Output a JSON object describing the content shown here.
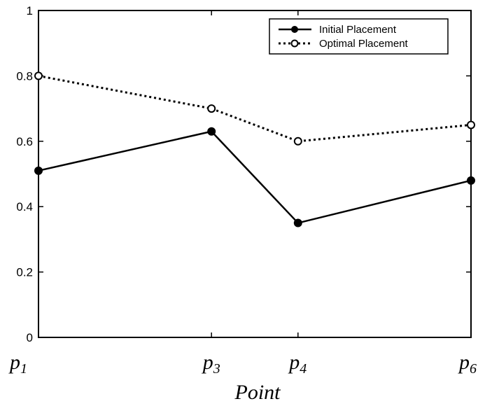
{
  "chart_data": {
    "type": "line",
    "xlabel": "Point",
    "ylabel": "",
    "title": "",
    "categories": [
      {
        "base": "p",
        "sub": "1"
      },
      {
        "base": "p",
        "sub": "3"
      },
      {
        "base": "p",
        "sub": "4"
      },
      {
        "base": "p",
        "sub": "6"
      }
    ],
    "x": [
      1,
      3,
      4,
      6
    ],
    "xlim": [
      1,
      6
    ],
    "ylim": [
      0,
      1
    ],
    "yticks": [
      "0",
      "0.2",
      "0.4",
      "0.6",
      "0.8",
      "1"
    ],
    "grid": false,
    "legend_position": "top-right",
    "series": [
      {
        "name": "Initial Placement",
        "values": [
          0.51,
          0.63,
          0.35,
          0.48
        ],
        "line": "solid",
        "marker": "filled-circle",
        "color": "#000000"
      },
      {
        "name": "Optimal Placement",
        "values": [
          0.8,
          0.7,
          0.6,
          0.65
        ],
        "line": "dotted",
        "marker": "open-circle",
        "color": "#000000"
      }
    ]
  }
}
